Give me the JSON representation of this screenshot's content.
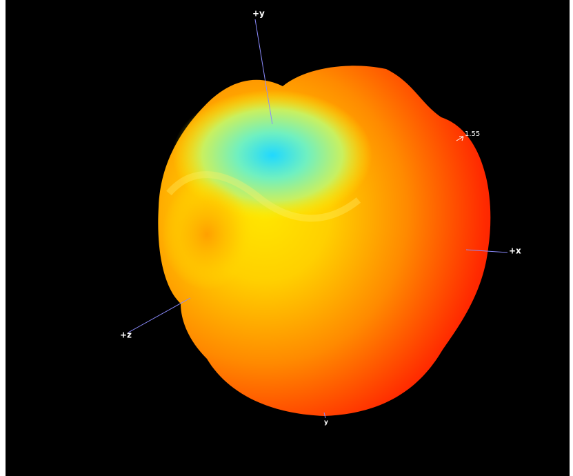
{
  "axes": {
    "x": "+x",
    "y": "+y",
    "z": "+z",
    "neg_y": "y"
  },
  "scale_label": "1.55"
}
